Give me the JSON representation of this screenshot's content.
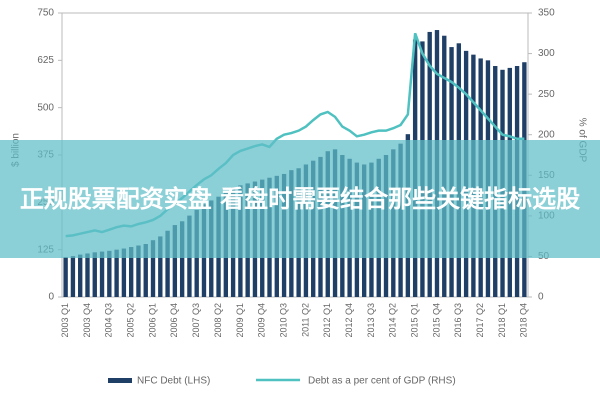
{
  "chart_data": {
    "type": "bar_line",
    "categories": [
      "2003 Q1",
      null,
      null,
      "2003 Q4",
      null,
      null,
      "2004 Q3",
      null,
      null,
      "2005 Q2",
      null,
      null,
      "2006 Q1",
      null,
      null,
      "2006 Q4",
      null,
      null,
      "2007 Q3",
      null,
      null,
      "2008 Q2",
      null,
      null,
      "2009 Q1",
      null,
      null,
      "2009 Q4",
      null,
      null,
      "2010 Q3",
      null,
      null,
      "2011 Q2",
      null,
      null,
      "2012 Q1",
      null,
      null,
      "2012 Q4",
      null,
      null,
      "2013 Q3",
      null,
      null,
      "2014 Q2",
      null,
      null,
      "2015 Q1",
      null,
      null,
      "2015 Q4",
      null,
      null,
      "2016 Q3",
      null,
      null,
      "2017 Q2",
      null,
      null,
      "2018 Q1",
      null,
      null,
      "2018 Q4"
    ],
    "series": [
      {
        "name": "NFC Debt (LHS)",
        "type": "bar",
        "color": "#1f3f66",
        "values": [
          105,
          108,
          112,
          115,
          118,
          120,
          122,
          125,
          128,
          132,
          136,
          140,
          150,
          160,
          175,
          190,
          200,
          215,
          230,
          245,
          255,
          265,
          275,
          290,
          295,
          300,
          305,
          310,
          315,
          320,
          325,
          335,
          340,
          350,
          360,
          370,
          385,
          390,
          375,
          365,
          355,
          350,
          355,
          365,
          375,
          390,
          405,
          430,
          680,
          675,
          700,
          705,
          690,
          660,
          670,
          650,
          640,
          630,
          625,
          610,
          600,
          605,
          610,
          620
        ]
      },
      {
        "name": "Debt as a per cent of GDP (RHS)",
        "type": "line",
        "axis": "y2",
        "color": "#4fc1c0",
        "values": [
          75,
          76,
          78,
          80,
          82,
          80,
          83,
          86,
          88,
          87,
          90,
          92,
          95,
          100,
          108,
          115,
          122,
          130,
          138,
          145,
          150,
          158,
          165,
          175,
          180,
          183,
          186,
          188,
          185,
          195,
          200,
          202,
          205,
          210,
          218,
          225,
          228,
          222,
          210,
          205,
          198,
          200,
          203,
          205,
          205,
          208,
          212,
          225,
          325,
          300,
          285,
          275,
          270,
          265,
          258,
          250,
          240,
          230,
          220,
          210,
          200,
          198,
          195,
          195
        ]
      }
    ],
    "ylabel": "$ billion",
    "y2label": "% of GDP",
    "ylim": [
      0,
      750
    ],
    "yticks": [
      0,
      125,
      250,
      375,
      500,
      625,
      750
    ],
    "y2lim": [
      0,
      350
    ],
    "y2ticks": [
      0,
      50,
      100,
      150,
      200,
      250,
      300,
      350
    ]
  },
  "banner": {
    "text": "正规股票配资实盘 看盘时需要结合那些关键指标选股"
  }
}
